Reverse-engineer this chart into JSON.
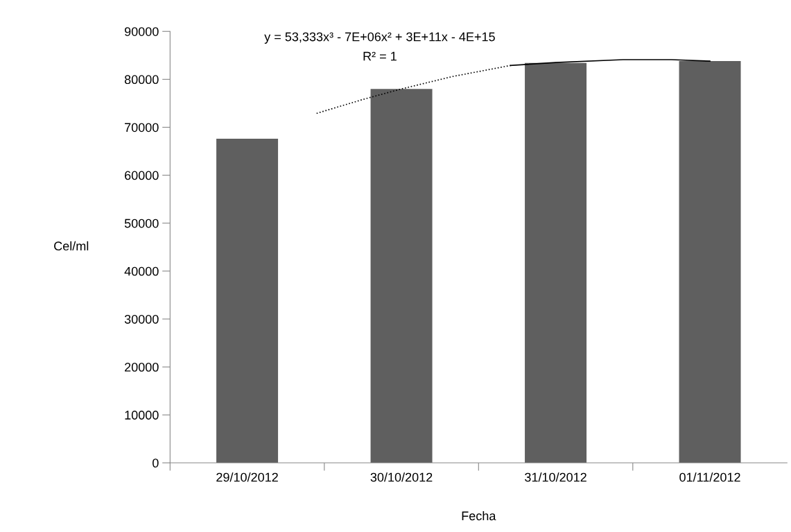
{
  "chart_data": {
    "type": "bar",
    "xlabel": "Fecha",
    "ylabel": "Cel/ml",
    "x": [
      "2012-10-29",
      "2012-10-30",
      "2012-10-31",
      "2012-11-01"
    ],
    "xlim": [
      "2012-10-28T12:00",
      "2012-11-01T12:00"
    ],
    "xticks": [
      {
        "value": "2012-10-29",
        "label": "29/10/2012"
      },
      {
        "value": "2012-10-30",
        "label": "30/10/2012"
      },
      {
        "value": "2012-10-31",
        "label": "31/10/2012"
      },
      {
        "value": "2012-11-01",
        "label": "01/11/2012"
      },
      {
        "value": "2012-10-28T12:00",
        "label": null
      },
      {
        "value": "2012-10-29T12:00",
        "label": null
      },
      {
        "value": "2012-10-30T12:00",
        "label": null
      },
      {
        "value": "2012-10-31T12:00",
        "label": null
      }
    ],
    "ylim": [
      0,
      90000
    ],
    "yticks": [
      0,
      10000,
      20000,
      30000,
      40000,
      50000,
      60000,
      70000,
      80000,
      90000
    ],
    "grid": false,
    "legend": false,
    "series": [
      {
        "color": "#5f5f5f",
        "values": [
          67600,
          78000,
          83400,
          83800
        ]
      },
      {
        "type": "line",
        "color": "#000000",
        "line_style": "dotted",
        "x": [
          "2012-10-29T10:48",
          "2012-10-29T18:00",
          "2012-10-30T00:00",
          "2012-10-30T08:00",
          "2012-10-30T17:00"
        ],
        "values": [
          72900,
          75800,
          78000,
          80600,
          82900
        ]
      },
      {
        "type": "line",
        "color": "#000000",
        "line_style": "solid",
        "x": [
          "2012-10-30T17:00",
          "2012-10-31T00:00",
          "2012-10-31T10:30",
          "2012-10-31T18:00",
          "2012-11-01T00:00"
        ],
        "values": [
          82900,
          83500,
          84100,
          84100,
          83800
        ]
      }
    ],
    "annotations": [
      "y = 53,333x³ - 7E+06x² + 3E+11x - 4E+15",
      "R² = 1"
    ]
  }
}
